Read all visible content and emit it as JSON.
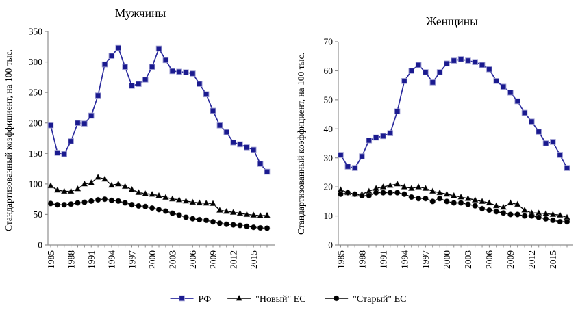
{
  "figure": {
    "background": "#ffffff",
    "axis_color": "#8f8f8f",
    "text_color": "#000000",
    "rf_color": "#1a1a8f",
    "rf_line_color": "#2b2b9e",
    "eu_color": "#000000"
  },
  "legend": {
    "items": [
      {
        "label": "РФ",
        "marker": "square",
        "color": "#1a1a8f",
        "line_color": "#2b2b9e"
      },
      {
        "label": "\"Новый\" ЕС",
        "marker": "triangle",
        "color": "#000000",
        "line_color": "#000000"
      },
      {
        "label": "\"Старый\" ЕС",
        "marker": "circle",
        "color": "#000000",
        "line_color": "#000000"
      }
    ]
  },
  "chart_data": [
    {
      "type": "line",
      "title": "Мужчины",
      "ylabel": "Стандартизованный коэффициент, на 100 тыс.",
      "xlabel": "",
      "ylim": [
        0,
        350
      ],
      "ytick_step": 50,
      "grid": false,
      "legend_position": "bottom",
      "x": [
        1985,
        1986,
        1987,
        1988,
        1989,
        1990,
        1991,
        1992,
        1993,
        1994,
        1995,
        1996,
        1997,
        1998,
        1999,
        2000,
        2001,
        2002,
        2003,
        2004,
        2005,
        2006,
        2007,
        2008,
        2009,
        2010,
        2011,
        2012,
        2013,
        2014,
        2015,
        2016,
        2017
      ],
      "xticks_labeled": [
        1985,
        1988,
        1991,
        1994,
        1997,
        2000,
        2003,
        2006,
        2009,
        2012,
        2015
      ],
      "series": [
        {
          "name": "РФ",
          "marker": "square",
          "color": "#1a1a8f",
          "line_color": "#2b2b9e",
          "values": [
            196,
            151,
            149,
            170,
            200,
            199,
            212,
            245,
            296,
            310,
            323,
            292,
            261,
            264,
            271,
            292,
            322,
            303,
            285,
            284,
            283,
            281,
            264,
            247,
            220,
            196,
            185,
            168,
            165,
            160,
            156,
            133,
            120
          ]
        },
        {
          "name": "\"Новый\" ЕС",
          "marker": "triangle",
          "color": "#000000",
          "line_color": "#000000",
          "values": [
            97,
            90,
            88,
            88,
            92,
            100,
            102,
            111,
            108,
            98,
            100,
            96,
            91,
            86,
            84,
            83,
            81,
            78,
            75.5,
            74,
            72,
            70,
            69,
            68.5,
            68,
            57,
            55,
            53.5,
            52,
            50,
            49,
            48,
            48.5
          ]
        },
        {
          "name": "\"Старый\" ЕС",
          "marker": "circle",
          "color": "#000000",
          "line_color": "#000000",
          "values": [
            68,
            66,
            66,
            67,
            69,
            70,
            72,
            74,
            75,
            73,
            72,
            69,
            66,
            64,
            63,
            60.5,
            58,
            55.5,
            52,
            49,
            45.5,
            43,
            41.5,
            40.5,
            38,
            35.5,
            34,
            33,
            32,
            30.5,
            29,
            28,
            27.5
          ]
        }
      ]
    },
    {
      "type": "line",
      "title": "Женщины",
      "ylabel": "Стандартизованный коэффициент, на 100 тыс.",
      "xlabel": "",
      "ylim": [
        0,
        70
      ],
      "ytick_step": 10,
      "grid": false,
      "legend_position": "bottom",
      "x": [
        1985,
        1986,
        1987,
        1988,
        1989,
        1990,
        1991,
        1992,
        1993,
        1994,
        1995,
        1996,
        1997,
        1998,
        1999,
        2000,
        2001,
        2002,
        2003,
        2004,
        2005,
        2006,
        2007,
        2008,
        2009,
        2010,
        2011,
        2012,
        2013,
        2014,
        2015,
        2016,
        2017
      ],
      "xticks_labeled": [
        1985,
        1988,
        1991,
        1994,
        1997,
        2000,
        2003,
        2006,
        2009,
        2012,
        2015
      ],
      "series": [
        {
          "name": "РФ",
          "marker": "square",
          "color": "#1a1a8f",
          "line_color": "#2b2b9e",
          "values": [
            31,
            27,
            26.5,
            30.5,
            36,
            37,
            37.5,
            38.5,
            46,
            56.5,
            60,
            62,
            59.5,
            56,
            59.5,
            62.5,
            63.5,
            64,
            63.5,
            63,
            62,
            60.5,
            56.5,
            54.5,
            52.5,
            49.5,
            45.5,
            42.5,
            39,
            35,
            35.5,
            31,
            26.5
          ]
        },
        {
          "name": "\"Новый\" ЕС",
          "marker": "triangle",
          "color": "#000000",
          "line_color": "#000000",
          "values": [
            19,
            18,
            17.5,
            17.5,
            18.5,
            19.5,
            20,
            20.5,
            21,
            20,
            19.5,
            20,
            19.5,
            18.5,
            18,
            17.5,
            17,
            16.5,
            16,
            15.5,
            15,
            14.5,
            13.5,
            13,
            14.5,
            14,
            12,
            11,
            11,
            10.8,
            10.5,
            10.3,
            9.5
          ]
        },
        {
          "name": "\"Старый\" ЕС",
          "marker": "circle",
          "color": "#000000",
          "line_color": "#000000",
          "values": [
            17.5,
            18,
            17.5,
            17,
            17,
            18,
            18,
            18,
            18,
            17.5,
            16.5,
            16,
            16,
            15,
            16,
            15,
            14.5,
            14.5,
            14,
            13.5,
            12.5,
            12,
            11.5,
            11,
            10.5,
            10.5,
            10,
            10,
            9.5,
            9,
            8.5,
            8,
            8
          ]
        }
      ]
    }
  ]
}
